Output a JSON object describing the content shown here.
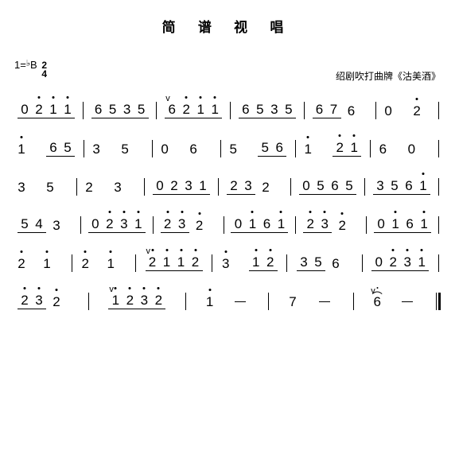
{
  "title": "简 谱 视 唱",
  "key": "1=",
  "keynote": "B",
  "flat": "♭",
  "timesig_top": "2",
  "timesig_bot": "4",
  "source": "绍剧吹打曲牌《沽美酒》",
  "lines": [
    [
      {
        "notes": [
          {
            "t": "0",
            "u": 1
          },
          {
            "t": "2",
            "dh": 1,
            "u": 1
          },
          {
            "t": "1",
            "dh": 1,
            "u": 1
          },
          {
            "t": "1",
            "dh": 1,
            "u": 1
          }
        ]
      },
      {
        "notes": [
          {
            "t": "6",
            "u": 1
          },
          {
            "t": "5",
            "u": 1
          },
          {
            "t": "3",
            "u": 1
          },
          {
            "t": "5",
            "u": 1
          }
        ]
      },
      {
        "notes": [
          {
            "t": "6",
            "u": 1,
            "br": 1
          },
          {
            "t": "2",
            "dh": 1,
            "u": 1
          },
          {
            "t": "1",
            "dh": 1,
            "u": 1
          },
          {
            "t": "1",
            "dh": 1,
            "u": 1
          }
        ]
      },
      {
        "notes": [
          {
            "t": "6",
            "u": 1
          },
          {
            "t": "5",
            "u": 1
          },
          {
            "t": "3",
            "u": 1
          },
          {
            "t": "5",
            "u": 1
          }
        ]
      },
      {
        "notes": [
          {
            "t": "6",
            "u": 1
          },
          {
            "t": "7",
            "u": 1
          },
          {
            "t": "6",
            "sp": 16
          }
        ]
      },
      {
        "notes": [
          {
            "t": "0",
            "sp": 18
          },
          {
            "t": "2",
            "dh": 1,
            "sp": 12
          }
        ]
      }
    ],
    [
      {
        "notes": [
          {
            "t": "1",
            "dh": 1,
            "sp": 18
          },
          {
            "t": "6",
            "u": 1
          },
          {
            "t": "5",
            "u": 1
          }
        ]
      },
      {
        "notes": [
          {
            "t": "3",
            "sp": 18
          },
          {
            "t": "5",
            "sp": 18
          }
        ]
      },
      {
        "notes": [
          {
            "t": "0",
            "sp": 18
          },
          {
            "t": "6",
            "sp": 18
          }
        ]
      },
      {
        "notes": [
          {
            "t": "5",
            "sp": 18
          },
          {
            "t": "5",
            "u": 1
          },
          {
            "t": "6",
            "u": 1
          }
        ]
      },
      {
        "notes": [
          {
            "t": "1",
            "dh": 1,
            "sp": 18
          },
          {
            "t": "2",
            "dh": 1,
            "u": 1
          },
          {
            "t": "1",
            "dh": 1,
            "u": 1
          }
        ]
      },
      {
        "notes": [
          {
            "t": "6",
            "sp": 18
          },
          {
            "t": "0",
            "sp": 18
          }
        ]
      }
    ],
    [
      {
        "notes": [
          {
            "t": "3",
            "sp": 18
          },
          {
            "t": "5",
            "sp": 18
          }
        ]
      },
      {
        "notes": [
          {
            "t": "2",
            "sp": 18
          },
          {
            "t": "3",
            "sp": 18
          }
        ]
      },
      {
        "notes": [
          {
            "t": "0",
            "u": 1
          },
          {
            "t": "2",
            "u": 1
          },
          {
            "t": "3",
            "u": 1
          },
          {
            "t": "1",
            "u": 1
          }
        ]
      },
      {
        "notes": [
          {
            "t": "2",
            "u": 1
          },
          {
            "t": "3",
            "u": 1
          },
          {
            "t": "2",
            "sp": 16
          }
        ]
      },
      {
        "notes": [
          {
            "t": "0",
            "u": 1
          },
          {
            "t": "5",
            "u": 1
          },
          {
            "t": "6",
            "u": 1
          },
          {
            "t": "5",
            "u": 1
          }
        ]
      },
      {
        "notes": [
          {
            "t": "3",
            "u": 1
          },
          {
            "t": "5",
            "u": 1
          },
          {
            "t": "6",
            "u": 1
          },
          {
            "t": "1",
            "dh": 1,
            "u": 1
          }
        ]
      }
    ],
    [
      {
        "notes": [
          {
            "t": "5",
            "u": 1
          },
          {
            "t": "4",
            "u": 1
          },
          {
            "t": "3",
            "sp": 16
          }
        ]
      },
      {
        "notes": [
          {
            "t": "0",
            "u": 1
          },
          {
            "t": "2",
            "dh": 1,
            "u": 1
          },
          {
            "t": "3",
            "dh": 1,
            "u": 1
          },
          {
            "t": "1",
            "dh": 1,
            "u": 1
          }
        ]
      },
      {
        "notes": [
          {
            "t": "2",
            "dh": 1,
            "u": 1
          },
          {
            "t": "3",
            "dh": 1,
            "u": 1
          },
          {
            "t": "2",
            "dh": 1,
            "sp": 16
          }
        ]
      },
      {
        "notes": [
          {
            "t": "0",
            "u": 1
          },
          {
            "t": "1",
            "dh": 1,
            "u": 1
          },
          {
            "t": "6",
            "u": 1
          },
          {
            "t": "1",
            "dh": 1,
            "u": 1
          }
        ]
      },
      {
        "notes": [
          {
            "t": "2",
            "dh": 1,
            "u": 1
          },
          {
            "t": "3",
            "dh": 1,
            "u": 1
          },
          {
            "t": "2",
            "dh": 1,
            "sp": 16
          }
        ]
      },
      {
        "notes": [
          {
            "t": "0",
            "u": 1
          },
          {
            "t": "1",
            "dh": 1,
            "u": 1
          },
          {
            "t": "6",
            "u": 1
          },
          {
            "t": "1",
            "dh": 1,
            "u": 1
          }
        ]
      }
    ],
    [
      {
        "notes": [
          {
            "t": "2",
            "dh": 1,
            "sp": 14
          },
          {
            "t": "1",
            "dh": 1,
            "sp": 14
          }
        ]
      },
      {
        "notes": [
          {
            "t": "2",
            "dh": 1,
            "sp": 14
          },
          {
            "t": "1",
            "dh": 1,
            "sp": 14
          }
        ]
      },
      {
        "notes": [
          {
            "t": "2",
            "dh": 1,
            "u": 1,
            "br": 1
          },
          {
            "t": "1",
            "dh": 1,
            "u": 1
          },
          {
            "t": "1",
            "dh": 1,
            "u": 1
          },
          {
            "t": "2",
            "dh": 1,
            "u": 1
          }
        ]
      },
      {
        "notes": [
          {
            "t": "3",
            "dh": 1,
            "sp": 16
          },
          {
            "t": "1",
            "dh": 1,
            "u": 1
          },
          {
            "t": "2",
            "dh": 1,
            "u": 1
          }
        ]
      },
      {
        "notes": [
          {
            "t": "3",
            "u": 1
          },
          {
            "t": "5",
            "u": 1
          },
          {
            "t": "6",
            "sp": 16
          }
        ]
      },
      {
        "notes": [
          {
            "t": "0",
            "u": 1
          },
          {
            "t": "2",
            "dh": 1,
            "u": 1
          },
          {
            "t": "3",
            "dh": 1,
            "u": 1
          },
          {
            "t": "1",
            "dh": 1,
            "u": 1
          }
        ]
      }
    ],
    [
      {
        "notes": [
          {
            "t": "2",
            "dh": 1,
            "u": 1
          },
          {
            "t": "3",
            "dh": 1,
            "u": 1
          },
          {
            "t": "2",
            "dh": 1,
            "sp": 10
          }
        ]
      },
      {
        "notes": [
          {
            "t": "1",
            "dh": 1,
            "u": 1,
            "br": 1
          },
          {
            "t": "2",
            "dh": 1,
            "u": 1
          },
          {
            "t": "3",
            "dh": 1,
            "u": 1
          },
          {
            "t": "2",
            "dh": 1,
            "u": 1
          }
        ]
      },
      {
        "notes": [
          {
            "t": "1",
            "dh": 1,
            "sp": 14
          },
          {
            "dash": 1
          }
        ]
      },
      {
        "notes": [
          {
            "t": "7",
            "sp": 16
          },
          {
            "dash": 1
          }
        ]
      },
      {
        "notes": [
          {
            "t": "6",
            "sp": 14,
            "br": 1,
            "ferm": 1
          },
          {
            "dash": 1
          }
        ],
        "final": 1
      }
    ]
  ]
}
